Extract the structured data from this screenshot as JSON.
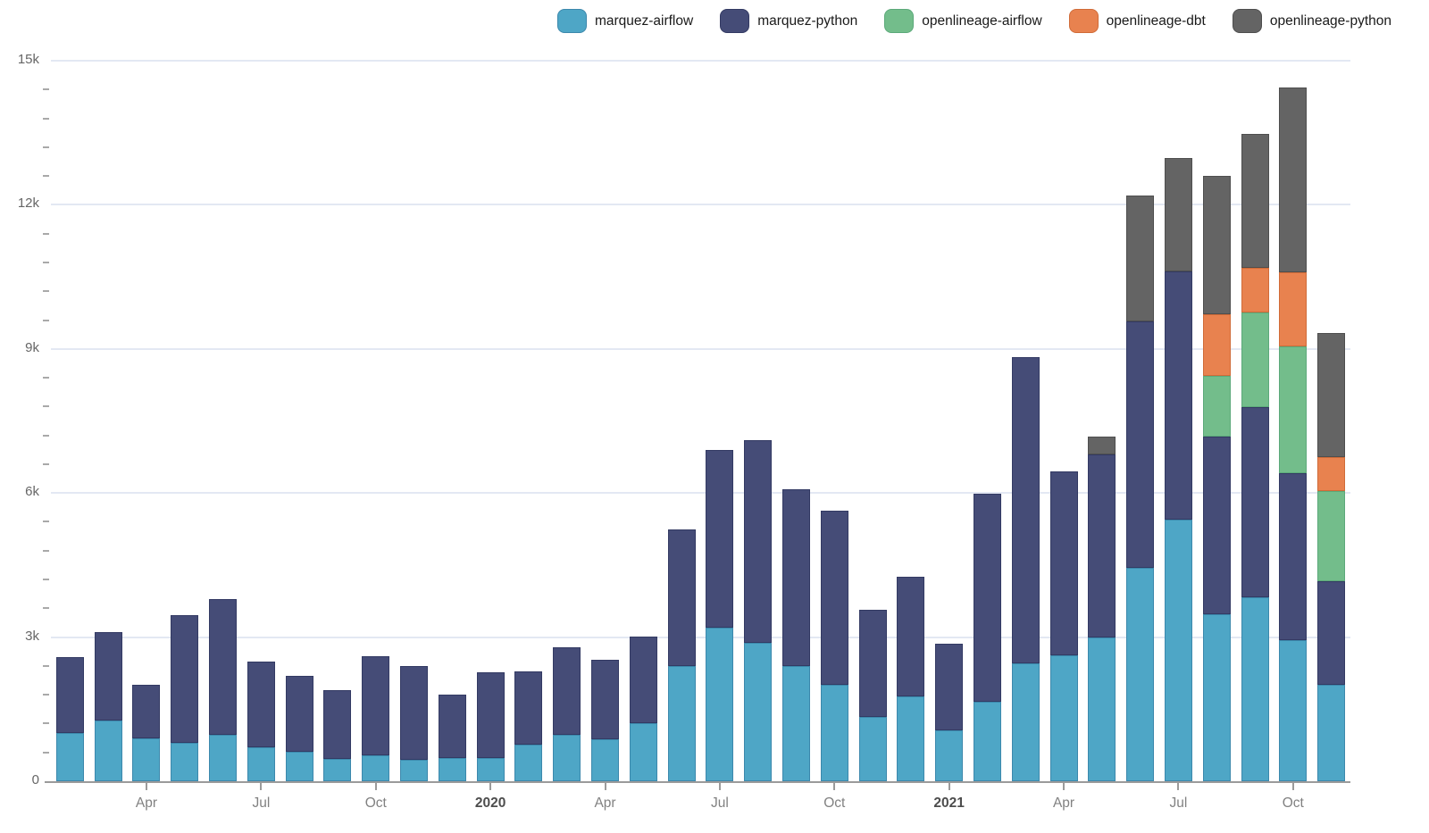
{
  "legend": {
    "items": [
      {
        "label": "marquez-airflow",
        "color": "#4EA6C6",
        "border": "#3c88ac"
      },
      {
        "label": "marquez-python",
        "color": "#454C77",
        "border": "#333a63"
      },
      {
        "label": "openlineage-airflow",
        "color": "#73BD8B",
        "border": "#5ca97a"
      },
      {
        "label": "openlineage-dbt",
        "color": "#E8824F",
        "border": "#d06b38"
      },
      {
        "label": "openlineage-python",
        "color": "#646464",
        "border": "#4e4e4e"
      }
    ]
  },
  "y_axis": {
    "tick_labels": [
      "0",
      "3k",
      "6k",
      "9k",
      "12k",
      "15k"
    ],
    "tick_values": [
      0,
      3000,
      6000,
      9000,
      12000,
      15000
    ],
    "minor_step": 600,
    "max": 15000
  },
  "x_axis": {
    "ticks": [
      {
        "label": "Apr",
        "index": 2,
        "bold": false
      },
      {
        "label": "Jul",
        "index": 5,
        "bold": false
      },
      {
        "label": "Oct",
        "index": 8,
        "bold": false
      },
      {
        "label": "2020",
        "index": 11,
        "bold": true
      },
      {
        "label": "Apr",
        "index": 14,
        "bold": false
      },
      {
        "label": "Jul",
        "index": 17,
        "bold": false
      },
      {
        "label": "Oct",
        "index": 20,
        "bold": false
      },
      {
        "label": "2021",
        "index": 23,
        "bold": true
      },
      {
        "label": "Apr",
        "index": 26,
        "bold": false
      },
      {
        "label": "Jul",
        "index": 29,
        "bold": false
      },
      {
        "label": "Oct",
        "index": 32,
        "bold": false
      }
    ]
  },
  "chart_data": {
    "type": "bar",
    "stacked": true,
    "title": "",
    "xlabel": "",
    "ylabel": "",
    "ylim": [
      0,
      15000
    ],
    "grid": "horizontal-major",
    "legend_position": "top-right",
    "x": [
      "2019-02",
      "2019-03",
      "2019-04",
      "2019-05",
      "2019-06",
      "2019-07",
      "2019-08",
      "2019-09",
      "2019-10",
      "2019-11",
      "2019-12",
      "2020-01",
      "2020-02",
      "2020-03",
      "2020-04",
      "2020-05",
      "2020-06",
      "2020-07",
      "2020-08",
      "2020-09",
      "2020-10",
      "2020-11",
      "2020-12",
      "2021-01",
      "2021-02",
      "2021-03",
      "2021-04",
      "2021-05",
      "2021-06",
      "2021-07",
      "2021-08",
      "2021-09",
      "2021-10",
      "2021-11"
    ],
    "series": [
      {
        "name": "marquez-airflow",
        "color": "#4EA6C6",
        "border": "#3c88ac",
        "values": [
          1000,
          1270,
          890,
          795,
          970,
          710,
          615,
          470,
          530,
          455,
          480,
          490,
          770,
          960,
          875,
          1200,
          2395,
          3190,
          2890,
          2395,
          2010,
          1330,
          1765,
          1065,
          1650,
          2450,
          2625,
          3000,
          4440,
          5440,
          3480,
          3830,
          2940,
          2000
        ]
      },
      {
        "name": "marquez-python",
        "color": "#454C77",
        "border": "#333a63",
        "values": [
          1580,
          1830,
          1120,
          2660,
          2820,
          1790,
          1575,
          1435,
          2080,
          1940,
          1330,
          1780,
          1520,
          1820,
          1655,
          1815,
          2855,
          3705,
          4205,
          3685,
          3630,
          2245,
          2500,
          1800,
          4330,
          6375,
          3830,
          3810,
          5140,
          5175,
          3690,
          3950,
          3470,
          2155
        ]
      },
      {
        "name": "openlineage-airflow",
        "color": "#73BD8B",
        "border": "#5ca97a",
        "values": [
          0,
          0,
          0,
          0,
          0,
          0,
          0,
          0,
          0,
          0,
          0,
          0,
          0,
          0,
          0,
          0,
          0,
          0,
          0,
          0,
          0,
          0,
          0,
          0,
          0,
          0,
          0,
          0,
          0,
          0,
          1270,
          1970,
          2640,
          1890
        ]
      },
      {
        "name": "openlineage-dbt",
        "color": "#E8824F",
        "border": "#d06b38",
        "values": [
          0,
          0,
          0,
          0,
          0,
          0,
          0,
          0,
          0,
          0,
          0,
          0,
          0,
          0,
          0,
          0,
          0,
          0,
          0,
          0,
          0,
          0,
          0,
          0,
          0,
          0,
          0,
          0,
          0,
          0,
          1290,
          940,
          1550,
          705
        ]
      },
      {
        "name": "openlineage-python",
        "color": "#646464",
        "border": "#4e4e4e",
        "values": [
          0,
          0,
          0,
          0,
          0,
          0,
          0,
          0,
          0,
          0,
          0,
          0,
          0,
          0,
          0,
          0,
          0,
          0,
          0,
          0,
          0,
          0,
          0,
          0,
          0,
          0,
          0,
          365,
          2605,
          2355,
          2870,
          2795,
          3845,
          2580
        ]
      }
    ]
  }
}
